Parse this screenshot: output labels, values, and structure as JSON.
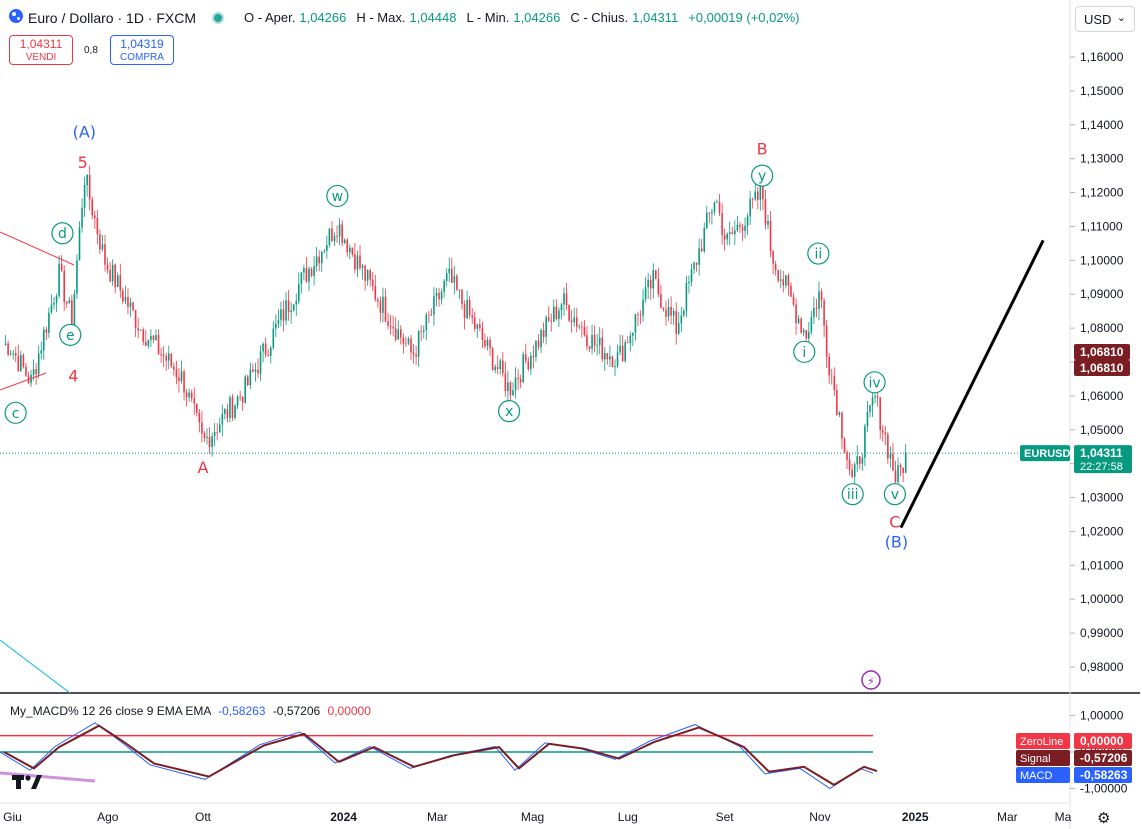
{
  "header": {
    "symbol": "Euro / Dollaro · 1D · FXCM",
    "open_label": "O - Aper.",
    "open": "1,04266",
    "high_label": "H - Max.",
    "high": "1,04448",
    "low_label": "L - Min.",
    "low": "1,04266",
    "close_label": "C - Chius.",
    "close": "1,04311",
    "change": "+0,00019 (+0,02%)"
  },
  "trade": {
    "sell_price": "1,04311",
    "sell_label": "VENDI",
    "spread": "0,8",
    "buy_price": "1,04319",
    "buy_label": "COMPRA"
  },
  "currency": "USD",
  "macd_legend": {
    "name": "My_MACD% 12 26 close 9 EMA EMA",
    "macd": "-0,58263",
    "signal": "-0,57206",
    "zero": "0,00000"
  },
  "colors": {
    "up": "#089981",
    "down": "#f23645",
    "blue": "#2962ff",
    "maroon": "#7b1e24",
    "wave_green": "#089981",
    "wave_red": "#f23645",
    "wave_blue": "#2962ff"
  },
  "chart_data": [
    {
      "type": "candlestick",
      "title": "Euro / Dollaro · 1D · FXCM",
      "y_ticks": [
        "1,16000",
        "1,15000",
        "1,14000",
        "1,13000",
        "1,12000",
        "1,11000",
        "1,10000",
        "1,09000",
        "1,08000",
        "1,07000",
        "1,06000",
        "1,05000",
        "1,04000",
        "1,03000",
        "1,02000",
        "1,01000",
        "1,00000",
        "0,99000",
        "0,98000"
      ],
      "y_range": [
        0.974,
        1.166
      ],
      "x_ticks": [
        "Giu",
        "Ago",
        "Ott",
        "2024",
        "Mar",
        "Mag",
        "Lug",
        "Set",
        "Nov",
        "2025",
        "Mar",
        "Ma"
      ],
      "price_path": [
        {
          "date": "2023-06-01",
          "close": 1.075
        },
        {
          "date": "2023-06-15",
          "close": 1.064
        },
        {
          "date": "2023-07-03",
          "close": 1.096
        },
        {
          "date": "2023-07-11",
          "close": 1.082
        },
        {
          "date": "2023-07-19",
          "close": 1.125
        },
        {
          "date": "2023-08-01",
          "close": 1.1
        },
        {
          "date": "2023-08-24",
          "close": 1.08
        },
        {
          "date": "2023-09-20",
          "close": 1.065
        },
        {
          "date": "2023-10-03",
          "close": 1.046
        },
        {
          "date": "2023-10-30",
          "close": 1.062
        },
        {
          "date": "2023-12-01",
          "close": 1.091
        },
        {
          "date": "2023-12-28",
          "close": 1.111
        },
        {
          "date": "2024-01-15",
          "close": 1.095
        },
        {
          "date": "2024-02-14",
          "close": 1.072
        },
        {
          "date": "2024-03-08",
          "close": 1.095
        },
        {
          "date": "2024-04-16",
          "close": 1.062
        },
        {
          "date": "2024-05-20",
          "close": 1.088
        },
        {
          "date": "2024-06-10",
          "close": 1.075
        },
        {
          "date": "2024-06-25",
          "close": 1.071
        },
        {
          "date": "2024-07-17",
          "close": 1.094
        },
        {
          "date": "2024-08-01",
          "close": 1.08
        },
        {
          "date": "2024-08-26",
          "close": 1.119
        },
        {
          "date": "2024-09-02",
          "close": 1.105
        },
        {
          "date": "2024-09-25",
          "close": 1.12
        },
        {
          "date": "2024-10-01",
          "close": 1.102
        },
        {
          "date": "2024-10-23",
          "close": 1.078
        },
        {
          "date": "2024-11-01",
          "close": 1.091
        },
        {
          "date": "2024-11-06",
          "close": 1.072
        },
        {
          "date": "2024-11-22",
          "close": 1.034
        },
        {
          "date": "2024-12-06",
          "close": 1.06
        },
        {
          "date": "2024-12-20",
          "close": 1.035
        },
        {
          "date": "2024-12-27",
          "close": 1.0431
        }
      ],
      "current_price": "1,04311",
      "current_symbol": "EURUSD",
      "countdown": "22:27:58",
      "level_labels": [
        "1,06810",
        "1,06810"
      ],
      "wave_labels": [
        {
          "text": "(A)",
          "date": "2023-07-19",
          "price": 1.138,
          "color": "blue"
        },
        {
          "text": "5",
          "date": "2023-07-18",
          "price": 1.129,
          "color": "red"
        },
        {
          "text": "d",
          "date": "2023-07-05",
          "price": 1.108,
          "color": "green",
          "circle": true
        },
        {
          "text": "e",
          "date": "2023-07-10",
          "price": 1.078,
          "color": "green",
          "circle": true
        },
        {
          "text": "4",
          "date": "2023-07-12",
          "price": 1.066,
          "color": "red"
        },
        {
          "text": "c",
          "date": "2023-06-05",
          "price": 1.055,
          "color": "green",
          "circle": true
        },
        {
          "text": "A",
          "date": "2023-10-03",
          "price": 1.039,
          "color": "red"
        },
        {
          "text": "w",
          "date": "2023-12-28",
          "price": 1.119,
          "color": "green",
          "circle": true
        },
        {
          "text": "x",
          "date": "2024-04-16",
          "price": 1.0555,
          "color": "green",
          "circle": true
        },
        {
          "text": "y",
          "date": "2024-09-25",
          "price": 1.125,
          "color": "green",
          "circle": true
        },
        {
          "text": "B",
          "date": "2024-09-25",
          "price": 1.133,
          "color": "red"
        },
        {
          "text": "ii",
          "date": "2024-10-31",
          "price": 1.102,
          "color": "green",
          "circle": true
        },
        {
          "text": "i",
          "date": "2024-10-22",
          "price": 1.073,
          "color": "green",
          "circle": true
        },
        {
          "text": "iv",
          "date": "2024-12-06",
          "price": 1.064,
          "color": "green",
          "circle": true
        },
        {
          "text": "iii",
          "date": "2024-11-22",
          "price": 1.031,
          "color": "green",
          "circle": true
        },
        {
          "text": "v",
          "date": "2024-12-19",
          "price": 1.031,
          "color": "green",
          "circle": true
        },
        {
          "text": "C",
          "date": "2024-12-19",
          "price": 1.023,
          "color": "red"
        },
        {
          "text": "(B)",
          "date": "2024-12-20",
          "price": 1.017,
          "color": "blue"
        }
      ],
      "projection": [
        {
          "date": "2024-12-28",
          "price": 1.035
        },
        {
          "date": "2025-03-15",
          "price": 1.087
        }
      ],
      "event_icon": "lightning-icon"
    },
    {
      "type": "line",
      "title": "My_MACD% 12 26 close 9 EMA EMA",
      "y_ticks": [
        "1,00000",
        "0,00000",
        "-1,00000"
      ],
      "y_range": [
        -1.3,
        1.3
      ],
      "series": [
        {
          "name": "MACD",
          "color": "#2962ff"
        },
        {
          "name": "Signal",
          "color": "#7b1e24"
        },
        {
          "name": "ZeroLine",
          "color": "#f23645"
        }
      ],
      "latest": {
        "ZeroLine": "0,00000",
        "Signal": "-0,57206",
        "MACD": "-0,58263"
      },
      "hist_label": "-0,58263"
    }
  ]
}
